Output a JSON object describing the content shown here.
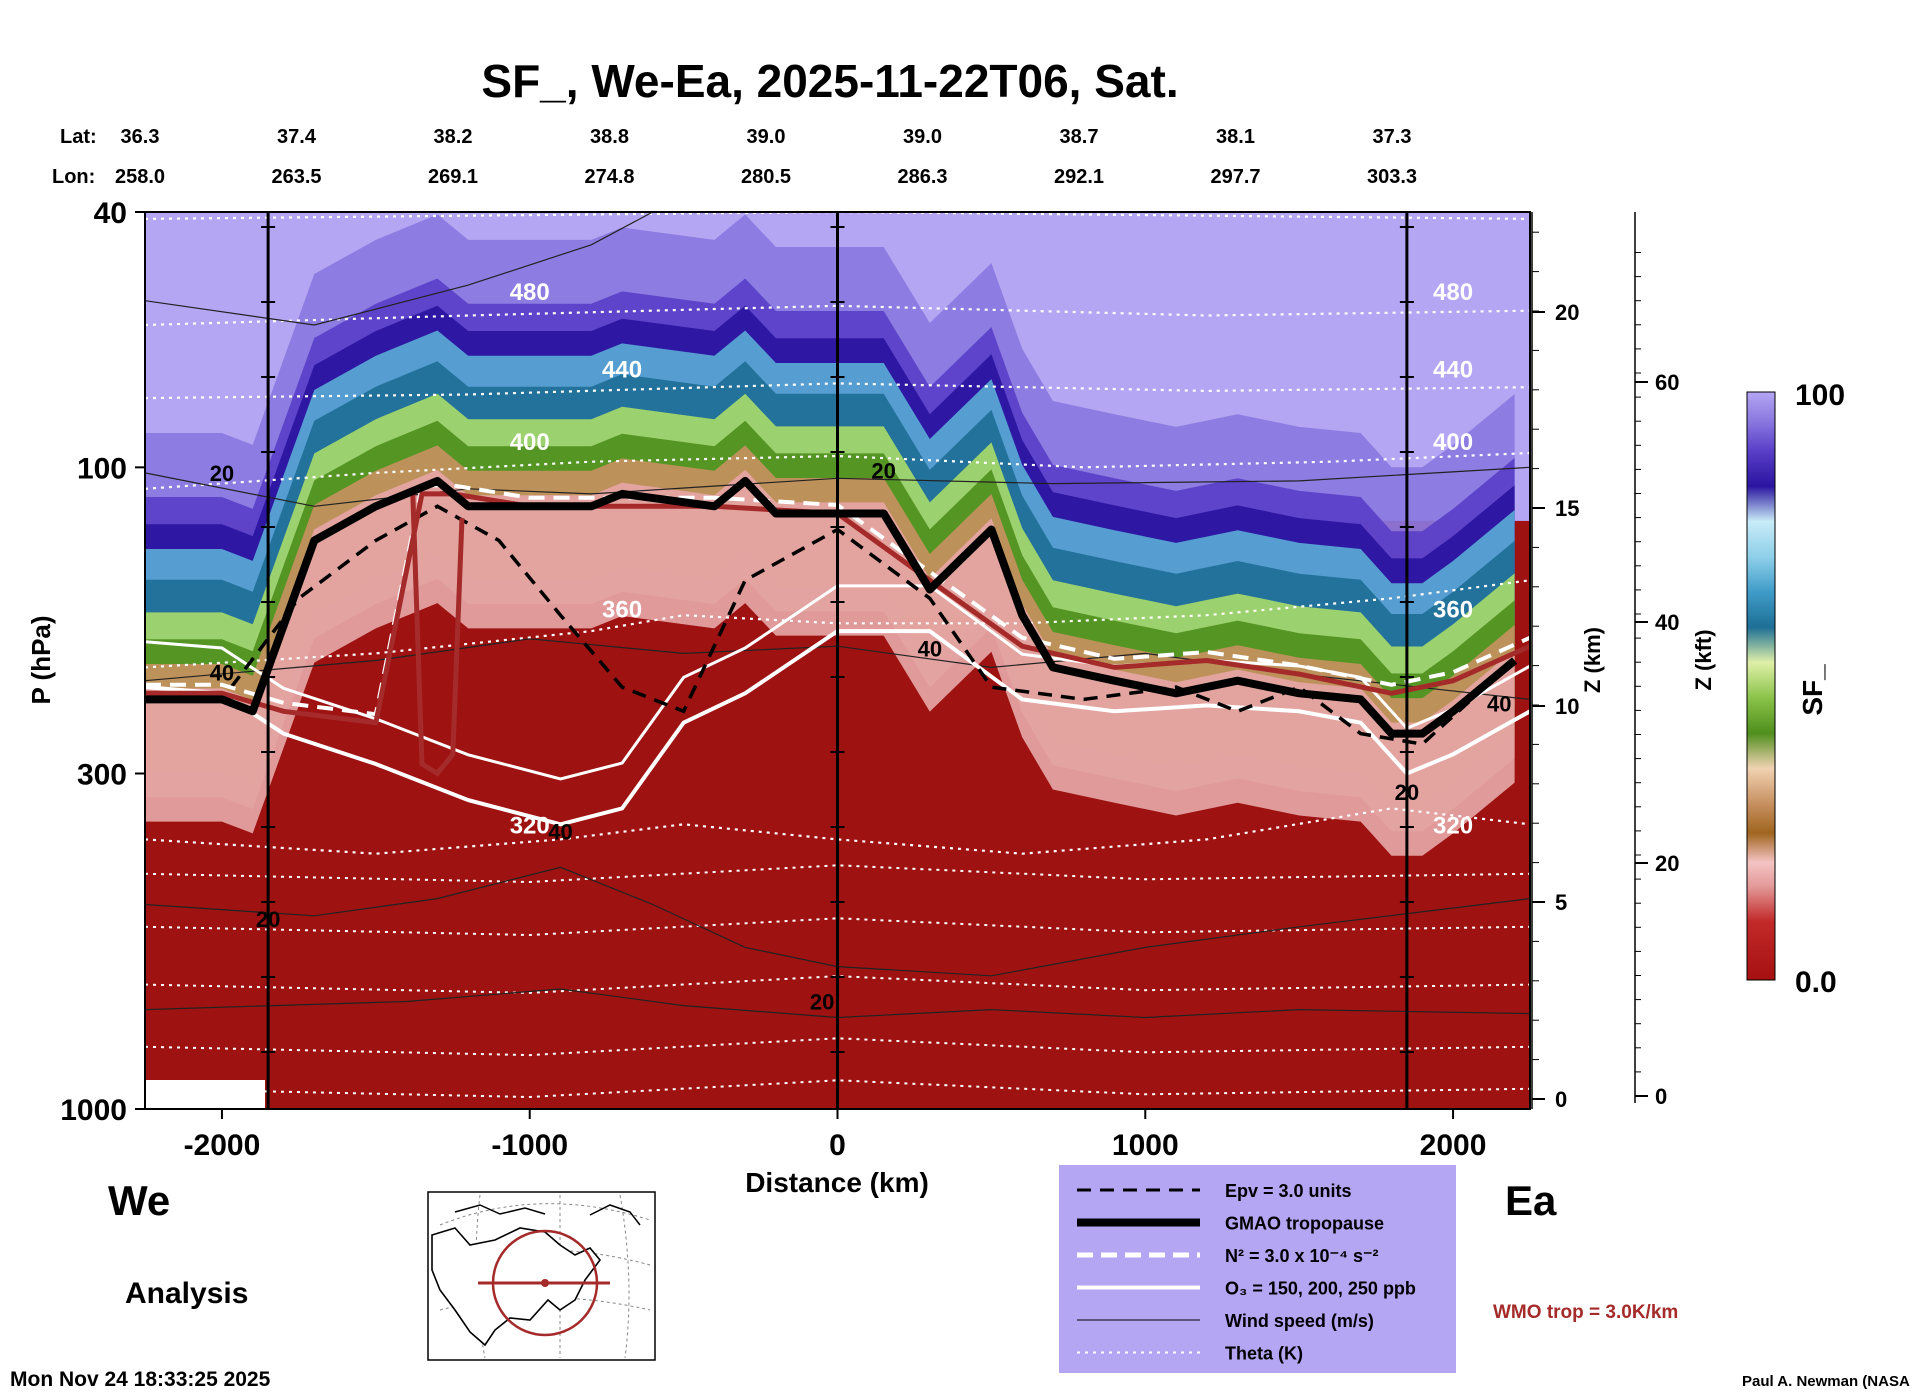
{
  "title": "SF_, We-Ea, 2025-11-22T06, Sat.",
  "lat_label": "Lat:",
  "lon_label": "Lon:",
  "lat_values": [
    "36.3",
    "37.4",
    "38.2",
    "38.8",
    "39.0",
    "39.0",
    "38.7",
    "38.1",
    "37.3"
  ],
  "lon_values": [
    "258.0",
    "263.5",
    "269.1",
    "274.8",
    "280.5",
    "286.3",
    "292.1",
    "297.7",
    "303.3"
  ],
  "left_label": "We",
  "right_label": "Ea",
  "analysis_label": "Analysis",
  "timestamp": "Mon Nov 24 18:33:25 2025",
  "credit": "Paul A. Newman (NASA",
  "wmo_label": "WMO trop = 3.0K/km",
  "colors": {
    "stratosphere": "#b4a6f3",
    "deep_blue": "#3f21ad",
    "troposphere": "#9e1212",
    "legend_bg": "#b4a6f3",
    "wmo_line": "#a52a2a"
  },
  "legend": [
    {
      "label": "Epv = 3.0 units",
      "style": "dashed-black"
    },
    {
      "label": "GMAO tropopause",
      "style": "thick-black"
    },
    {
      "label": "N² = 3.0 x 10⁻⁴ s⁻²",
      "style": "dashed-white"
    },
    {
      "label": "O₃ = 150, 200, 250 ppb",
      "style": "solid-white"
    },
    {
      "label": "Wind speed (m/s)",
      "style": "thin-black"
    },
    {
      "label": "Theta (K)",
      "style": "dotted-white"
    }
  ],
  "chart_data": {
    "type": "heatmap",
    "title": "SF_, We-Ea, 2025-11-22T06, Sat.",
    "xlabel": "Distance (km)",
    "ylabel": "P (hPa)",
    "xlim": [
      -2250,
      2250
    ],
    "ylim": [
      1000,
      40
    ],
    "y_scale": "log",
    "x_ticks": [
      -2000,
      -1000,
      0,
      1000,
      2000
    ],
    "x_tick_labels": [
      "-2000",
      "-1000",
      "0",
      "1000",
      "2000"
    ],
    "y_ticks": [
      1000,
      300,
      100,
      40
    ],
    "y_tick_labels": [
      "1000",
      "300",
      "100",
      "40"
    ],
    "right_axis_km": {
      "label": "Z (km)",
      "ticks": [
        "0",
        "5",
        "10",
        "15",
        "20"
      ]
    },
    "right_axis_kft": {
      "label": "Z (kft)",
      "ticks": [
        "0",
        "20",
        "40",
        "60"
      ]
    },
    "colorbar": {
      "label": "SF_",
      "min": "0.0",
      "max": "100"
    },
    "section_lines_km": [
      -1850,
      0,
      1850
    ],
    "gmao_tropopause": [
      [
        -2250,
        230
      ],
      [
        -2000,
        230
      ],
      [
        -1900,
        240
      ],
      [
        -1700,
        130
      ],
      [
        -1500,
        115
      ],
      [
        -1300,
        105
      ],
      [
        -1200,
        115
      ],
      [
        -1000,
        115
      ],
      [
        -800,
        115
      ],
      [
        -700,
        110
      ],
      [
        -400,
        115
      ],
      [
        -300,
        105
      ],
      [
        -200,
        118
      ],
      [
        0,
        118
      ],
      [
        150,
        118
      ],
      [
        300,
        155
      ],
      [
        500,
        125
      ],
      [
        600,
        170
      ],
      [
        700,
        205
      ],
      [
        900,
        215
      ],
      [
        1100,
        225
      ],
      [
        1300,
        215
      ],
      [
        1500,
        225
      ],
      [
        1700,
        230
      ],
      [
        1800,
        260
      ],
      [
        1900,
        260
      ],
      [
        2000,
        240
      ],
      [
        2200,
        200
      ]
    ],
    "wmo_tropopause": [
      [
        -2250,
        225
      ],
      [
        -2000,
        225
      ],
      [
        -1800,
        240
      ],
      [
        -1500,
        250
      ],
      [
        -1350,
        110
      ],
      [
        -1250,
        110
      ],
      [
        -1000,
        115
      ],
      [
        -800,
        115
      ],
      [
        -400,
        115
      ],
      [
        0,
        118
      ],
      [
        300,
        150
      ],
      [
        600,
        190
      ],
      [
        900,
        205
      ],
      [
        1200,
        200
      ],
      [
        1500,
        210
      ],
      [
        1800,
        225
      ],
      [
        2000,
        215
      ],
      [
        2250,
        190
      ]
    ],
    "wmo_double_tropopause": [
      [
        -1380,
        110
      ],
      [
        -1350,
        290
      ],
      [
        -1300,
        300
      ],
      [
        -1250,
        280
      ],
      [
        -1220,
        120
      ]
    ],
    "epv_3_units": [
      [
        -2250,
        230
      ],
      [
        -2000,
        230
      ],
      [
        -1750,
        160
      ],
      [
        -1500,
        130
      ],
      [
        -1300,
        115
      ],
      [
        -1100,
        130
      ],
      [
        -900,
        170
      ],
      [
        -700,
        220
      ],
      [
        -500,
        240
      ],
      [
        -300,
        150
      ],
      [
        0,
        125
      ],
      [
        300,
        160
      ],
      [
        500,
        220
      ],
      [
        800,
        230
      ],
      [
        1100,
        220
      ],
      [
        1300,
        240
      ],
      [
        1500,
        220
      ],
      [
        1700,
        260
      ],
      [
        1900,
        270
      ],
      [
        2200,
        200
      ]
    ],
    "o3_contour": [
      [
        -2250,
        220
      ],
      [
        -2000,
        225
      ],
      [
        -1800,
        260
      ],
      [
        -1500,
        290
      ],
      [
        -1200,
        330
      ],
      [
        -900,
        360
      ],
      [
        -700,
        340
      ],
      [
        -500,
        250
      ],
      [
        -300,
        225
      ],
      [
        0,
        180
      ],
      [
        300,
        180
      ],
      [
        600,
        230
      ],
      [
        900,
        240
      ],
      [
        1200,
        235
      ],
      [
        1500,
        240
      ],
      [
        1700,
        250
      ],
      [
        1850,
        300
      ],
      [
        2000,
        280
      ],
      [
        2250,
        240
      ]
    ],
    "theta_levels": [
      {
        "theta": "320",
        "points": [
          [
            -2250,
            380
          ],
          [
            -1500,
            400
          ],
          [
            -900,
            380
          ],
          [
            -500,
            360
          ],
          [
            0,
            380
          ],
          [
            600,
            400
          ],
          [
            1200,
            380
          ],
          [
            1800,
            340
          ],
          [
            2250,
            360
          ]
        ]
      },
      {
        "theta": "360",
        "points": [
          [
            -2250,
            205
          ],
          [
            -1500,
            195
          ],
          [
            -800,
            180
          ],
          [
            -500,
            170
          ],
          [
            0,
            175
          ],
          [
            600,
            175
          ],
          [
            1200,
            170
          ],
          [
            1800,
            160
          ],
          [
            2250,
            150
          ]
        ]
      },
      {
        "theta": "400",
        "points": [
          [
            -2250,
            108
          ],
          [
            -1500,
            102
          ],
          [
            -800,
            98
          ],
          [
            0,
            96
          ],
          [
            800,
            100
          ],
          [
            1600,
            98
          ],
          [
            2250,
            95
          ]
        ]
      },
      {
        "theta": "440",
        "points": [
          [
            -2250,
            78
          ],
          [
            -1200,
            77
          ],
          [
            0,
            74
          ],
          [
            1200,
            76
          ],
          [
            2250,
            75
          ]
        ]
      },
      {
        "theta": "480",
        "points": [
          [
            -2250,
            60
          ],
          [
            -1200,
            58
          ],
          [
            0,
            56
          ],
          [
            1200,
            58
          ],
          [
            2250,
            57
          ]
        ]
      },
      {
        "theta": "520",
        "points": [
          [
            -2250,
            41
          ],
          [
            0,
            40
          ],
          [
            2250,
            41
          ]
        ]
      }
    ],
    "wind_speed_labels": [
      {
        "value": "20",
        "x": -2000,
        "p": 105
      },
      {
        "value": "20",
        "x": 150,
        "p": 104
      },
      {
        "value": "40",
        "x": -2000,
        "p": 215
      },
      {
        "value": "40",
        "x": 300,
        "p": 197
      },
      {
        "value": "40",
        "x": -900,
        "p": 380
      },
      {
        "value": "40",
        "x": 2150,
        "p": 240
      },
      {
        "value": "20",
        "x": -1850,
        "p": 520
      },
      {
        "value": "20",
        "x": -50,
        "p": 700
      },
      {
        "value": "20",
        "x": 1850,
        "p": 330
      }
    ]
  }
}
